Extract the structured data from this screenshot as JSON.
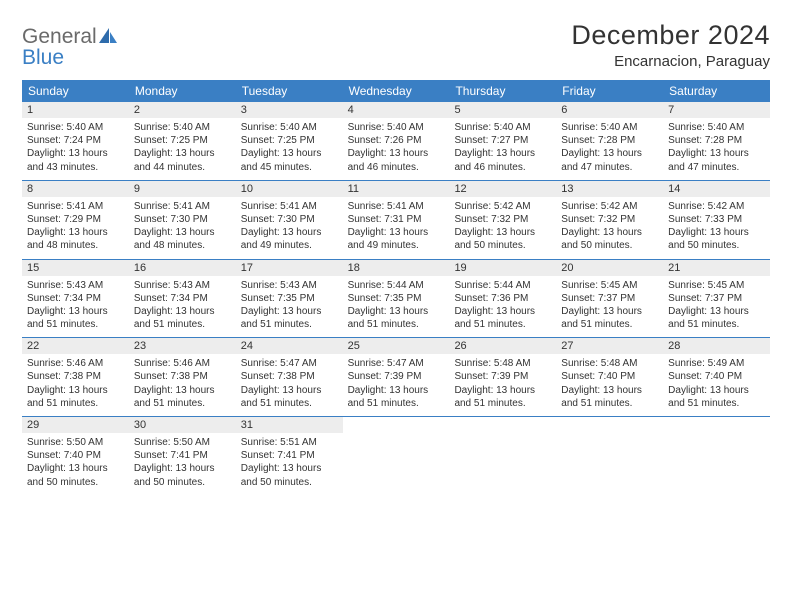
{
  "logo": {
    "text1": "General",
    "text2": "Blue"
  },
  "title": "December 2024",
  "location": "Encarnacion, Paraguay",
  "colors": {
    "header_bg": "#3a7fc4",
    "header_text": "#ffffff",
    "daynum_bg": "#ededed",
    "row_border": "#3a7fc4",
    "text": "#333333",
    "page_bg": "#ffffff"
  },
  "typography": {
    "title_fontsize": 27,
    "location_fontsize": 15,
    "dayheader_fontsize": 12,
    "daynum_fontsize": 11,
    "cell_fontsize": 10
  },
  "day_headers": [
    "Sunday",
    "Monday",
    "Tuesday",
    "Wednesday",
    "Thursday",
    "Friday",
    "Saturday"
  ],
  "weeks": [
    [
      {
        "day": "1",
        "sunrise": "5:40 AM",
        "sunset": "7:24 PM",
        "daylight": "13 hours and 43 minutes."
      },
      {
        "day": "2",
        "sunrise": "5:40 AM",
        "sunset": "7:25 PM",
        "daylight": "13 hours and 44 minutes."
      },
      {
        "day": "3",
        "sunrise": "5:40 AM",
        "sunset": "7:25 PM",
        "daylight": "13 hours and 45 minutes."
      },
      {
        "day": "4",
        "sunrise": "5:40 AM",
        "sunset": "7:26 PM",
        "daylight": "13 hours and 46 minutes."
      },
      {
        "day": "5",
        "sunrise": "5:40 AM",
        "sunset": "7:27 PM",
        "daylight": "13 hours and 46 minutes."
      },
      {
        "day": "6",
        "sunrise": "5:40 AM",
        "sunset": "7:28 PM",
        "daylight": "13 hours and 47 minutes."
      },
      {
        "day": "7",
        "sunrise": "5:40 AM",
        "sunset": "7:28 PM",
        "daylight": "13 hours and 47 minutes."
      }
    ],
    [
      {
        "day": "8",
        "sunrise": "5:41 AM",
        "sunset": "7:29 PM",
        "daylight": "13 hours and 48 minutes."
      },
      {
        "day": "9",
        "sunrise": "5:41 AM",
        "sunset": "7:30 PM",
        "daylight": "13 hours and 48 minutes."
      },
      {
        "day": "10",
        "sunrise": "5:41 AM",
        "sunset": "7:30 PM",
        "daylight": "13 hours and 49 minutes."
      },
      {
        "day": "11",
        "sunrise": "5:41 AM",
        "sunset": "7:31 PM",
        "daylight": "13 hours and 49 minutes."
      },
      {
        "day": "12",
        "sunrise": "5:42 AM",
        "sunset": "7:32 PM",
        "daylight": "13 hours and 50 minutes."
      },
      {
        "day": "13",
        "sunrise": "5:42 AM",
        "sunset": "7:32 PM",
        "daylight": "13 hours and 50 minutes."
      },
      {
        "day": "14",
        "sunrise": "5:42 AM",
        "sunset": "7:33 PM",
        "daylight": "13 hours and 50 minutes."
      }
    ],
    [
      {
        "day": "15",
        "sunrise": "5:43 AM",
        "sunset": "7:34 PM",
        "daylight": "13 hours and 51 minutes."
      },
      {
        "day": "16",
        "sunrise": "5:43 AM",
        "sunset": "7:34 PM",
        "daylight": "13 hours and 51 minutes."
      },
      {
        "day": "17",
        "sunrise": "5:43 AM",
        "sunset": "7:35 PM",
        "daylight": "13 hours and 51 minutes."
      },
      {
        "day": "18",
        "sunrise": "5:44 AM",
        "sunset": "7:35 PM",
        "daylight": "13 hours and 51 minutes."
      },
      {
        "day": "19",
        "sunrise": "5:44 AM",
        "sunset": "7:36 PM",
        "daylight": "13 hours and 51 minutes."
      },
      {
        "day": "20",
        "sunrise": "5:45 AM",
        "sunset": "7:37 PM",
        "daylight": "13 hours and 51 minutes."
      },
      {
        "day": "21",
        "sunrise": "5:45 AM",
        "sunset": "7:37 PM",
        "daylight": "13 hours and 51 minutes."
      }
    ],
    [
      {
        "day": "22",
        "sunrise": "5:46 AM",
        "sunset": "7:38 PM",
        "daylight": "13 hours and 51 minutes."
      },
      {
        "day": "23",
        "sunrise": "5:46 AM",
        "sunset": "7:38 PM",
        "daylight": "13 hours and 51 minutes."
      },
      {
        "day": "24",
        "sunrise": "5:47 AM",
        "sunset": "7:38 PM",
        "daylight": "13 hours and 51 minutes."
      },
      {
        "day": "25",
        "sunrise": "5:47 AM",
        "sunset": "7:39 PM",
        "daylight": "13 hours and 51 minutes."
      },
      {
        "day": "26",
        "sunrise": "5:48 AM",
        "sunset": "7:39 PM",
        "daylight": "13 hours and 51 minutes."
      },
      {
        "day": "27",
        "sunrise": "5:48 AM",
        "sunset": "7:40 PM",
        "daylight": "13 hours and 51 minutes."
      },
      {
        "day": "28",
        "sunrise": "5:49 AM",
        "sunset": "7:40 PM",
        "daylight": "13 hours and 51 minutes."
      }
    ],
    [
      {
        "day": "29",
        "sunrise": "5:50 AM",
        "sunset": "7:40 PM",
        "daylight": "13 hours and 50 minutes."
      },
      {
        "day": "30",
        "sunrise": "5:50 AM",
        "sunset": "7:41 PM",
        "daylight": "13 hours and 50 minutes."
      },
      {
        "day": "31",
        "sunrise": "5:51 AM",
        "sunset": "7:41 PM",
        "daylight": "13 hours and 50 minutes."
      },
      null,
      null,
      null,
      null
    ]
  ],
  "labels": {
    "sunrise": "Sunrise:",
    "sunset": "Sunset:",
    "daylight": "Daylight:"
  }
}
